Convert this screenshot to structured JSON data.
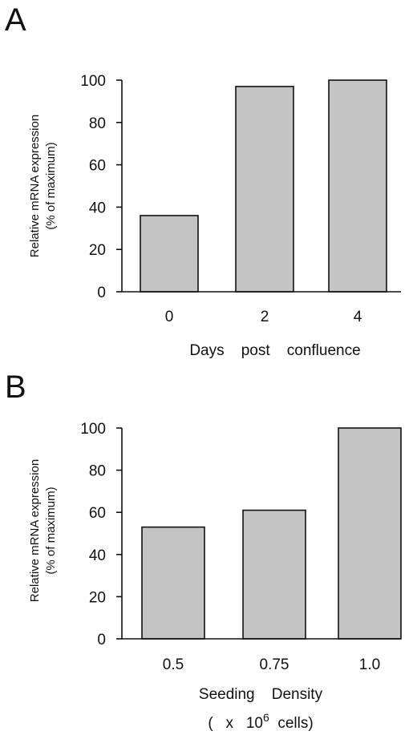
{
  "colors": {
    "bar_fill": "#c4c4c4",
    "bar_stroke": "#111111",
    "axis": "#111111"
  },
  "chart_data": [
    {
      "panel": "A",
      "type": "bar",
      "categories": [
        "0",
        "2",
        "4"
      ],
      "values": [
        36,
        97,
        100
      ],
      "ylim": [
        0,
        100
      ],
      "yticks": [
        "0",
        "20",
        "40",
        "60",
        "80",
        "100"
      ],
      "ylabel_line1": "Relative mRNA expression",
      "ylabel_line2": "(% of maximum)",
      "xlabel": "Days    post    confluence",
      "grid": false
    },
    {
      "panel": "B",
      "type": "bar",
      "categories": [
        "0.5",
        "0.75",
        "1.0"
      ],
      "values": [
        53,
        61,
        100
      ],
      "ylim": [
        0,
        100
      ],
      "yticks": [
        "0",
        "20",
        "40",
        "60",
        "80",
        "100"
      ],
      "ylabel_line1": "Relative mRNA expression",
      "ylabel_line2": "(% of maximum)",
      "xlabel": "Seeding    Density",
      "xlabel_line2_pre": "(   x   10",
      "xlabel_line2_sup": "6",
      "xlabel_line2_post": "  cells)",
      "grid": false
    }
  ]
}
